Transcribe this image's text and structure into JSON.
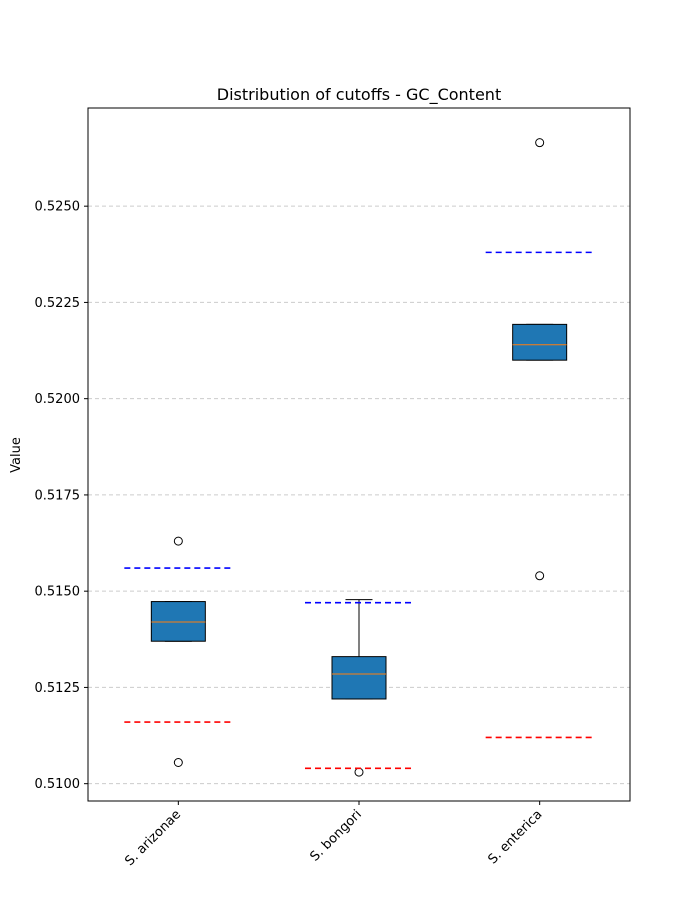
{
  "chart_data": {
    "type": "box",
    "title": "Distribution of cutoffs - GC_Content",
    "xlabel": "",
    "ylabel": "Value",
    "ylim": [
      0.50955,
      0.52755
    ],
    "yticks": [
      0.51,
      0.5125,
      0.515,
      0.5175,
      0.52,
      0.5225,
      0.525
    ],
    "ytick_labels": [
      "0.5100",
      "0.5125",
      "0.5150",
      "0.5175",
      "0.5200",
      "0.5225",
      "0.5250"
    ],
    "categories": [
      "S. arizonae",
      "S. bongori",
      "S. enterica"
    ],
    "boxes": [
      {
        "category": "S. arizonae",
        "q1": 0.5137,
        "median": 0.5142,
        "q3": 0.51473,
        "whisker_low": 0.5137,
        "whisker_high": 0.51473,
        "outliers": [
          0.5163,
          0.51055
        ],
        "upper_cutoff": 0.5156,
        "lower_cutoff": 0.5116
      },
      {
        "category": "S. bongori",
        "q1": 0.5122,
        "median": 0.51285,
        "q3": 0.5133,
        "whisker_low": 0.5122,
        "whisker_high": 0.51478,
        "outliers": [
          0.5103
        ],
        "upper_cutoff": 0.5147,
        "lower_cutoff": 0.5104
      },
      {
        "category": "S. enterica",
        "q1": 0.521,
        "median": 0.5214,
        "q3": 0.52193,
        "whisker_low": 0.521,
        "whisker_high": 0.52193,
        "outliers": [
          0.52665,
          0.5154
        ],
        "upper_cutoff": 0.5238,
        "lower_cutoff": 0.5112
      }
    ],
    "grid": "y dashed",
    "colors": {
      "box_fill": "#1f77b4",
      "median": "#ff7f0e",
      "upper_cutoff": "#0000ff",
      "lower_cutoff": "#ff0000",
      "grid": "#cccccc"
    }
  }
}
